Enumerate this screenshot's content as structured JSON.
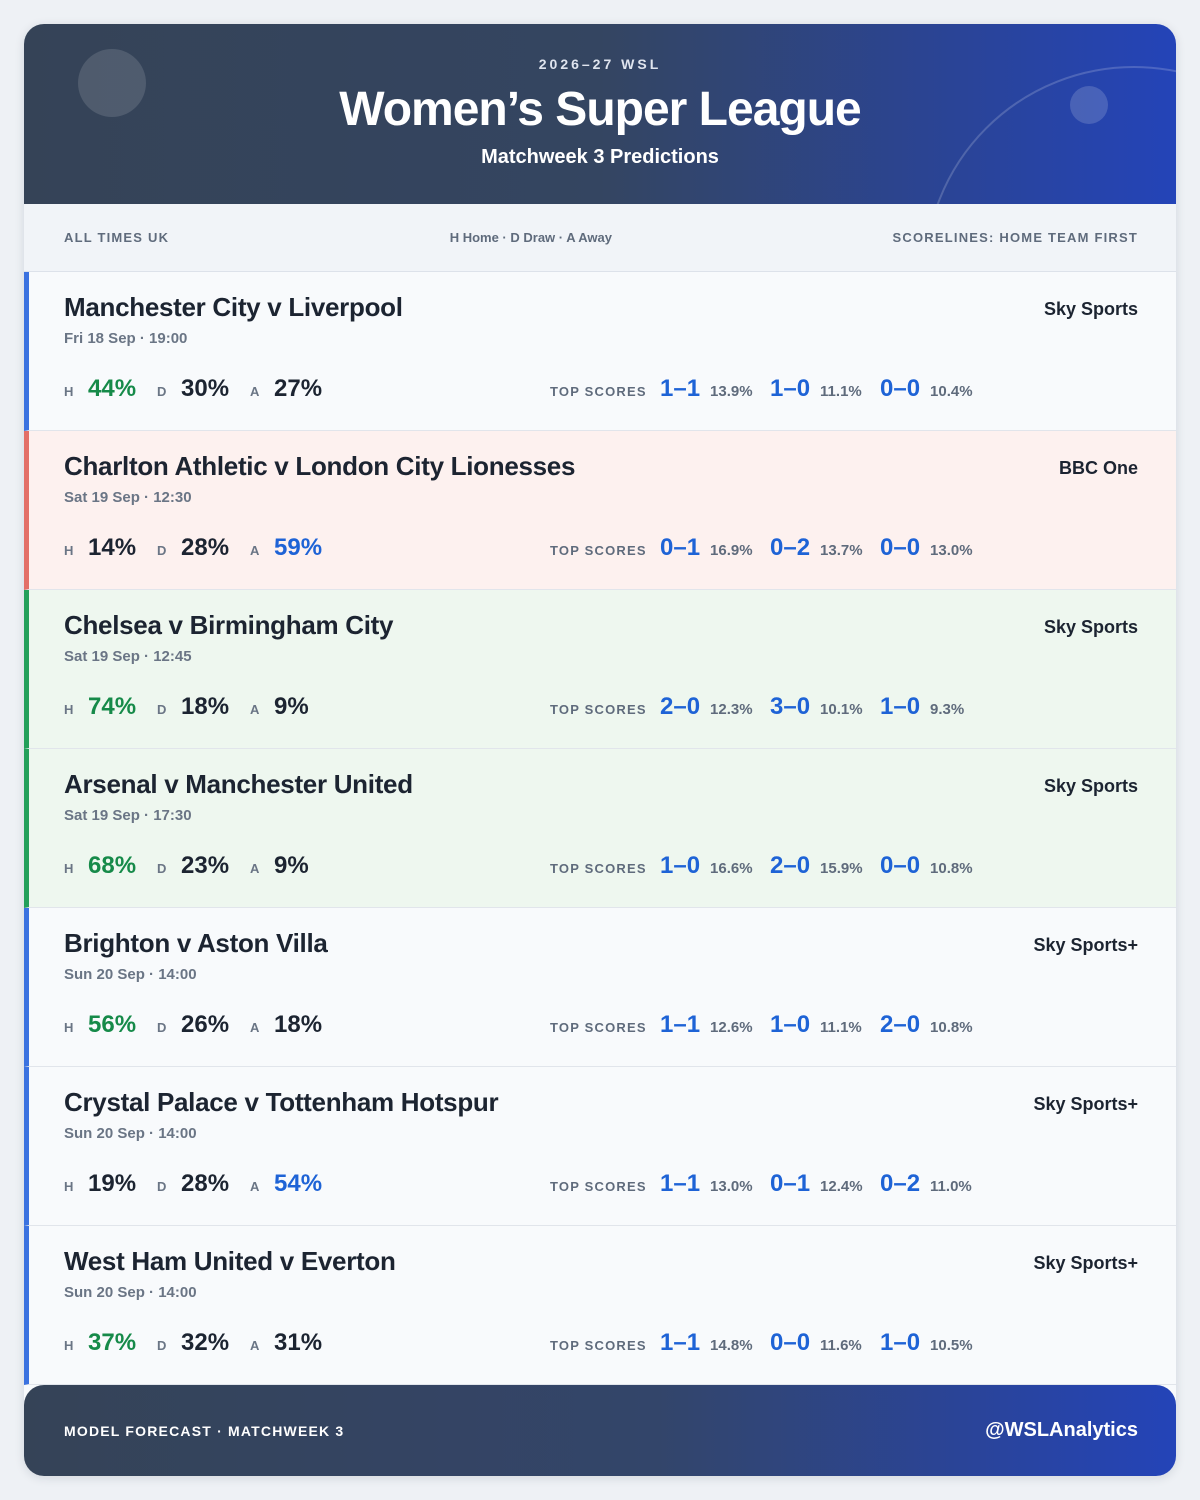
{
  "header": {
    "season": "2026–27 WSL",
    "title": "Women’s Super League",
    "subtitle": "Matchweek 3 Predictions"
  },
  "infobar": {
    "left": "ALL TIMES UK",
    "center": "H Home · D Draw · A Away",
    "right": "SCORELINES: HOME TEAM FIRST"
  },
  "labels": {
    "h": "H",
    "d": "D",
    "a": "A",
    "top_scores": "TOP SCORES"
  },
  "colors": {
    "home_favourite": "#168a49",
    "away_favourite": "#1e63d6",
    "accent_neutral": "#3b72e0",
    "accent_away": "#e36f67",
    "accent_home": "#23a05a"
  },
  "matches": [
    {
      "title": "Manchester City v Liverpool",
      "time": "Fri 18 Sep · 19:00",
      "tv": "Sky Sports",
      "h": "44%",
      "d": "30%",
      "a": "27%",
      "highlight": "home",
      "style": "neutral",
      "scores": [
        {
          "score": "1–1",
          "pct": "13.9%"
        },
        {
          "score": "1–0",
          "pct": "11.1%"
        },
        {
          "score": "0–0",
          "pct": "10.4%"
        }
      ]
    },
    {
      "title": "Charlton Athletic v London City Lionesses",
      "time": "Sat 19 Sep · 12:30",
      "tv": "BBC One",
      "h": "14%",
      "d": "28%",
      "a": "59%",
      "highlight": "away",
      "style": "away",
      "scores": [
        {
          "score": "0–1",
          "pct": "16.9%"
        },
        {
          "score": "0–2",
          "pct": "13.7%"
        },
        {
          "score": "0–0",
          "pct": "13.0%"
        }
      ]
    },
    {
      "title": "Chelsea v Birmingham City",
      "time": "Sat 19 Sep · 12:45",
      "tv": "Sky Sports",
      "h": "74%",
      "d": "18%",
      "a": "9%",
      "highlight": "home",
      "style": "home",
      "scores": [
        {
          "score": "2–0",
          "pct": "12.3%"
        },
        {
          "score": "3–0",
          "pct": "10.1%"
        },
        {
          "score": "1–0",
          "pct": "9.3%"
        }
      ]
    },
    {
      "title": "Arsenal v Manchester United",
      "time": "Sat 19 Sep · 17:30",
      "tv": "Sky Sports",
      "h": "68%",
      "d": "23%",
      "a": "9%",
      "highlight": "home",
      "style": "home",
      "scores": [
        {
          "score": "1–0",
          "pct": "16.6%"
        },
        {
          "score": "2–0",
          "pct": "15.9%"
        },
        {
          "score": "0–0",
          "pct": "10.8%"
        }
      ]
    },
    {
      "title": "Brighton v Aston Villa",
      "time": "Sun 20 Sep · 14:00",
      "tv": "Sky Sports+",
      "h": "56%",
      "d": "26%",
      "a": "18%",
      "highlight": "home",
      "style": "neutral",
      "scores": [
        {
          "score": "1–1",
          "pct": "12.6%"
        },
        {
          "score": "1–0",
          "pct": "11.1%"
        },
        {
          "score": "2–0",
          "pct": "10.8%"
        }
      ]
    },
    {
      "title": "Crystal Palace v Tottenham Hotspur",
      "time": "Sun 20 Sep · 14:00",
      "tv": "Sky Sports+",
      "h": "19%",
      "d": "28%",
      "a": "54%",
      "highlight": "away",
      "style": "neutral",
      "scores": [
        {
          "score": "1–1",
          "pct": "13.0%"
        },
        {
          "score": "0–1",
          "pct": "12.4%"
        },
        {
          "score": "0–2",
          "pct": "11.0%"
        }
      ]
    },
    {
      "title": "West Ham United v Everton",
      "time": "Sun 20 Sep · 14:00",
      "tv": "Sky Sports+",
      "h": "37%",
      "d": "32%",
      "a": "31%",
      "highlight": "home",
      "style": "neutral",
      "scores": [
        {
          "score": "1–1",
          "pct": "14.8%"
        },
        {
          "score": "0–0",
          "pct": "11.6%"
        },
        {
          "score": "1–0",
          "pct": "10.5%"
        }
      ]
    }
  ],
  "footer": {
    "left": "MODEL FORECAST · MATCHWEEK 3",
    "right": "@WSLAnalytics"
  }
}
